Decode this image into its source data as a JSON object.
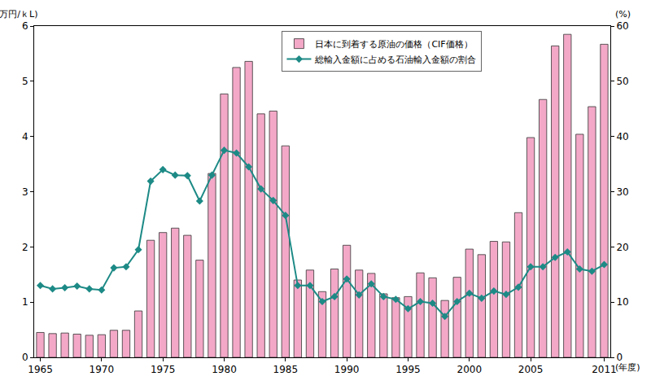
{
  "chart_data": {
    "type": "bar",
    "x": [
      1965,
      1966,
      1967,
      1968,
      1969,
      1970,
      1971,
      1972,
      1973,
      1974,
      1975,
      1976,
      1977,
      1978,
      1979,
      1980,
      1981,
      1982,
      1983,
      1984,
      1985,
      1986,
      1987,
      1988,
      1989,
      1990,
      1991,
      1992,
      1993,
      1994,
      1995,
      1996,
      1997,
      1998,
      1999,
      2000,
      2001,
      2002,
      2003,
      2004,
      2005,
      2006,
      2007,
      2008,
      2009,
      2010,
      2011
    ],
    "series": [
      {
        "name": "日本に到着する原油の価格（CIF価格）",
        "type": "bar",
        "color": "#f4a8c8",
        "values": [
          0.45,
          0.43,
          0.44,
          0.42,
          0.4,
          0.41,
          0.49,
          0.49,
          0.84,
          2.12,
          2.26,
          2.34,
          2.21,
          1.76,
          3.33,
          4.77,
          5.25,
          5.36,
          4.41,
          4.46,
          3.83,
          1.4,
          1.58,
          1.19,
          1.6,
          2.03,
          1.58,
          1.52,
          1.15,
          1.08,
          1.1,
          1.53,
          1.44,
          1.03,
          1.45,
          1.96,
          1.86,
          2.1,
          2.09,
          2.62,
          3.98,
          4.67,
          5.64,
          5.85,
          4.04,
          4.54,
          5.67
        ]
      },
      {
        "name": "総輸入金額に占める石油輸入金額の割合",
        "type": "line",
        "axis": "y2",
        "color": "#1d8a86",
        "marker": "diamond",
        "values": [
          13.0,
          12.4,
          12.6,
          12.9,
          12.4,
          12.2,
          16.2,
          16.4,
          19.5,
          31.9,
          34.0,
          33.0,
          32.9,
          28.3,
          33.0,
          37.5,
          37.0,
          34.5,
          30.5,
          28.4,
          25.7,
          13.0,
          13.0,
          10.1,
          11.0,
          14.2,
          11.3,
          13.3,
          11.0,
          10.5,
          8.8,
          10.1,
          9.8,
          7.4,
          10.1,
          11.6,
          10.7,
          12.0,
          11.4,
          12.7,
          16.4,
          16.4,
          18.1,
          19.1,
          16.0,
          15.6,
          16.8
        ]
      }
    ],
    "xlabel": "(年度)",
    "ylabel": "(万円/ｋL)",
    "y2label": "(%)",
    "xlim": [
      1964.5,
      2011.5
    ],
    "xticks": [
      1965,
      1970,
      1975,
      1980,
      1985,
      1990,
      1995,
      2000,
      2005,
      2011
    ],
    "ylim": [
      0,
      6
    ],
    "yticks": [
      0,
      1,
      2,
      3,
      4,
      5,
      6
    ],
    "y2lim": [
      0,
      60
    ],
    "y2ticks": [
      0,
      10,
      20,
      30,
      40,
      50,
      60
    ],
    "grid": false,
    "legend": "top"
  }
}
